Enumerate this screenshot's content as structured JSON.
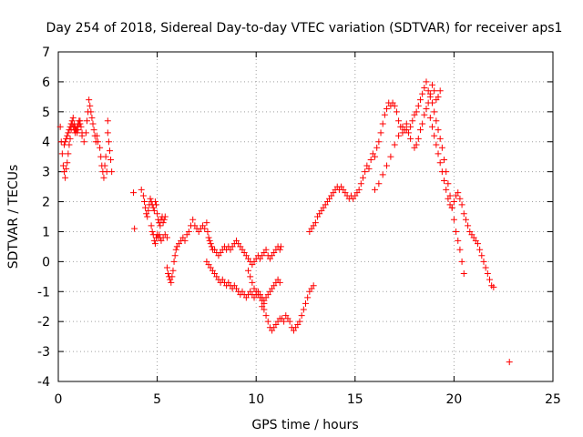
{
  "chart_data": {
    "type": "scatter",
    "title": "Day 254 of 2018, Sidereal Day-to-day VTEC variation (SDTVAR) for receiver aps1",
    "xlabel": "GPS time / hours",
    "ylabel": "SDTVAR / TECUs",
    "xlim": [
      0,
      25
    ],
    "ylim": [
      -4,
      7
    ],
    "x_ticks": [
      0,
      5,
      10,
      15,
      20,
      25
    ],
    "y_ticks": [
      -4,
      -3,
      -2,
      -1,
      0,
      1,
      2,
      3,
      4,
      5,
      6,
      7
    ],
    "grid": true,
    "legend": "none",
    "marker": "plus",
    "color": "#ff0000",
    "series": [
      {
        "x": [
          0.1,
          0.15,
          0.2,
          0.25,
          0.3,
          0.35,
          0.4,
          0.45,
          0.5,
          0.55,
          0.6,
          0.65,
          0.7,
          0.75,
          0.8,
          0.85,
          0.9,
          0.95,
          1.0,
          1.05,
          1.1,
          1.15,
          1.2,
          0.3,
          0.35,
          0.4,
          0.45,
          0.5,
          0.55,
          0.6,
          0.65,
          0.7,
          0.75,
          0.8,
          0.85,
          0.9,
          0.95,
          1.0,
          1.05,
          1.1,
          1.2,
          1.3,
          1.4,
          1.45,
          1.5,
          1.55,
          1.6,
          1.65,
          1.7,
          1.75,
          1.8,
          1.85,
          1.9,
          1.95,
          2.0,
          2.1,
          2.15,
          2.2,
          2.25,
          2.3,
          2.35,
          2.4,
          2.45,
          2.5,
          2.5,
          2.55,
          2.6,
          2.65,
          2.7
        ],
        "y": [
          4.5,
          4.0,
          3.6,
          3.2,
          3.0,
          2.8,
          3.1,
          3.3,
          3.6,
          3.9,
          4.1,
          4.4,
          4.6,
          4.8,
          4.6,
          4.5,
          4.4,
          4.3,
          4.4,
          4.6,
          4.7,
          4.5,
          4.3,
          3.9,
          4.0,
          4.1,
          4.2,
          4.3,
          4.4,
          4.5,
          4.6,
          4.7,
          4.5,
          4.4,
          4.3,
          4.4,
          4.5,
          4.6,
          4.7,
          4.6,
          4.2,
          4.0,
          4.3,
          4.7,
          5.0,
          5.4,
          5.2,
          5.0,
          4.8,
          4.6,
          4.4,
          4.2,
          4.0,
          4.2,
          4.0,
          3.8,
          3.5,
          3.2,
          3.0,
          2.8,
          3.2,
          3.5,
          3.0,
          4.7,
          4.3,
          4.0,
          3.7,
          3.4,
          3.0
        ]
      },
      {
        "x": [
          3.8,
          3.85,
          4.2,
          4.3,
          4.35,
          4.4,
          4.45,
          4.5,
          4.55,
          4.6,
          4.65,
          4.7,
          4.75,
          4.8,
          4.85,
          4.9,
          4.95,
          5.0,
          5.05,
          5.1,
          5.15,
          5.2,
          5.25,
          5.3,
          5.35,
          5.4,
          4.7,
          4.75,
          4.8,
          4.85,
          4.9,
          4.95,
          5.0,
          5.05,
          5.1,
          5.15,
          5.2,
          5.3,
          5.4,
          5.5,
          5.5,
          5.55,
          5.6,
          5.65,
          5.7,
          5.75,
          5.8,
          5.85,
          5.9,
          5.95,
          6.0,
          6.1,
          6.2,
          6.3,
          6.4,
          6.5,
          6.6,
          6.7,
          6.8,
          6.9,
          7.0,
          7.1,
          7.2,
          7.3,
          7.4,
          7.5,
          7.55,
          7.6,
          7.65,
          7.7,
          7.75,
          7.8,
          7.9,
          8.0,
          8.1,
          8.2,
          8.3,
          8.4,
          8.5,
          8.6,
          8.7,
          8.8,
          8.9,
          9.0,
          9.1,
          9.2,
          9.3,
          9.4,
          9.5,
          9.6,
          9.7,
          9.8,
          9.9,
          10.0,
          10.1,
          10.2,
          10.3,
          10.4,
          10.5,
          10.6,
          10.7,
          10.8,
          10.9,
          11.0,
          11.1,
          11.2,
          11.25
        ],
        "y": [
          2.3,
          1.1,
          2.4,
          2.2,
          2.0,
          1.8,
          1.6,
          1.5,
          1.7,
          1.9,
          2.1,
          2.0,
          1.9,
          1.8,
          1.7,
          2.0,
          1.9,
          1.6,
          1.4,
          1.3,
          1.2,
          1.4,
          1.5,
          1.3,
          1.4,
          1.5,
          1.2,
          1.0,
          0.9,
          0.7,
          0.6,
          0.8,
          0.9,
          0.8,
          0.9,
          0.8,
          0.7,
          0.8,
          0.9,
          0.8,
          -0.2,
          -0.4,
          -0.5,
          -0.6,
          -0.7,
          -0.5,
          -0.3,
          0.0,
          0.2,
          0.4,
          0.5,
          0.6,
          0.7,
          0.8,
          0.7,
          0.9,
          1.0,
          1.2,
          1.4,
          1.2,
          1.1,
          1.0,
          1.1,
          1.2,
          1.1,
          1.3,
          1.0,
          0.8,
          0.7,
          0.6,
          0.5,
          0.4,
          0.4,
          0.3,
          0.2,
          0.3,
          0.4,
          0.5,
          0.4,
          0.5,
          0.4,
          0.5,
          0.6,
          0.7,
          0.6,
          0.5,
          0.4,
          0.3,
          0.2,
          0.1,
          0.0,
          -0.1,
          0.0,
          0.1,
          0.2,
          0.1,
          0.2,
          0.3,
          0.4,
          0.2,
          0.1,
          0.2,
          0.3,
          0.4,
          0.5,
          0.4,
          0.5
        ]
      },
      {
        "x": [
          7.5,
          7.6,
          7.7,
          7.8,
          7.9,
          8.0,
          8.1,
          8.2,
          8.3,
          8.4,
          8.5,
          8.6,
          8.7,
          8.8,
          8.9,
          9.0,
          9.1,
          9.2,
          9.3,
          9.4,
          9.5,
          9.6,
          9.7,
          9.8,
          9.9,
          10.0,
          10.1,
          10.2,
          10.3,
          10.4,
          10.5,
          10.6,
          10.7,
          10.8,
          10.9,
          11.0,
          11.1,
          11.2,
          9.6,
          9.7,
          9.8,
          9.9,
          10.0,
          10.1,
          10.2,
          10.3,
          10.4
        ],
        "y": [
          0.0,
          -0.1,
          -0.2,
          -0.3,
          -0.4,
          -0.5,
          -0.6,
          -0.7,
          -0.6,
          -0.7,
          -0.8,
          -0.7,
          -0.8,
          -0.9,
          -0.8,
          -0.9,
          -1.0,
          -1.1,
          -1.0,
          -1.1,
          -1.2,
          -1.1,
          -1.0,
          -1.1,
          -1.2,
          -1.1,
          -1.0,
          -1.1,
          -1.2,
          -1.3,
          -1.2,
          -1.1,
          -1.0,
          -0.9,
          -0.8,
          -0.7,
          -0.6,
          -0.7,
          -0.3,
          -0.5,
          -0.7,
          -0.9,
          -1.0,
          -1.1,
          -1.2,
          -1.3,
          -1.4
        ]
      },
      {
        "x": [
          10.3,
          10.4,
          10.5,
          10.6,
          10.7,
          10.8,
          10.9,
          11.0,
          11.1,
          11.2,
          11.3,
          11.4,
          11.5,
          11.6,
          11.7,
          11.8,
          11.9,
          12.0,
          12.1,
          12.2,
          12.3,
          12.4,
          12.5,
          12.6,
          12.7,
          12.8,
          12.9
        ],
        "y": [
          -1.5,
          -1.6,
          -1.8,
          -2.0,
          -2.2,
          -2.3,
          -2.2,
          -2.1,
          -2.0,
          -1.9,
          -1.9,
          -2.0,
          -1.8,
          -1.9,
          -2.0,
          -2.2,
          -2.3,
          -2.2,
          -2.1,
          -2.0,
          -1.8,
          -1.6,
          -1.4,
          -1.2,
          -1.0,
          -0.9,
          -0.8
        ]
      },
      {
        "x": [
          12.7,
          12.8,
          12.9,
          13.0,
          13.1,
          13.2,
          13.3,
          13.4,
          13.5,
          13.6,
          13.7,
          13.8,
          13.9,
          14.0,
          14.1,
          14.2,
          14.3,
          14.4,
          14.5,
          14.6,
          14.7,
          14.8,
          14.9,
          15.0,
          15.1,
          15.2,
          15.3,
          15.4,
          15.5,
          15.6,
          15.7,
          15.8,
          15.9,
          16.0,
          16.1,
          16.2,
          16.3,
          16.4,
          16.5,
          16.6,
          16.7,
          16.8,
          16.9,
          17.0,
          17.1,
          17.2,
          17.3,
          17.4,
          17.5,
          17.6,
          17.7,
          17.8,
          17.9,
          18.0,
          18.1,
          18.2,
          18.3,
          18.4,
          18.5,
          18.6,
          18.7,
          18.8,
          18.9,
          19.0,
          19.1,
          19.2,
          19.3,
          19.4,
          19.5,
          19.6,
          19.7,
          19.8,
          19.9,
          20.0,
          20.1,
          20.2,
          20.3,
          20.4,
          20.5
        ],
        "y": [
          1.0,
          1.1,
          1.2,
          1.3,
          1.5,
          1.6,
          1.7,
          1.8,
          1.9,
          2.0,
          2.1,
          2.2,
          2.3,
          2.4,
          2.5,
          2.4,
          2.5,
          2.4,
          2.3,
          2.2,
          2.1,
          2.2,
          2.1,
          2.2,
          2.3,
          2.4,
          2.6,
          2.8,
          3.0,
          3.2,
          3.1,
          3.4,
          3.6,
          3.5,
          3.8,
          4.0,
          4.3,
          4.6,
          4.9,
          5.1,
          5.3,
          5.2,
          5.3,
          5.2,
          5.0,
          4.7,
          4.5,
          4.3,
          4.4,
          4.6,
          4.3,
          4.5,
          4.7,
          4.9,
          5.0,
          5.2,
          5.4,
          5.6,
          5.8,
          6.0,
          5.7,
          5.5,
          5.3,
          5.0,
          4.7,
          4.4,
          4.1,
          3.8,
          3.4,
          3.0,
          2.6,
          2.2,
          1.8,
          1.4,
          1.0,
          0.7,
          0.4,
          0.0,
          -0.4
        ]
      },
      {
        "x": [
          16.0,
          16.2,
          16.4,
          16.6,
          16.8,
          17.0,
          17.2,
          17.4,
          17.6,
          17.8,
          18.0,
          18.1,
          18.2,
          18.3,
          18.4,
          18.5,
          18.6,
          18.7,
          18.8,
          18.9,
          19.0,
          19.1,
          19.2,
          19.3
        ],
        "y": [
          2.4,
          2.6,
          2.9,
          3.2,
          3.5,
          3.9,
          4.2,
          4.5,
          4.4,
          4.1,
          3.8,
          3.9,
          4.1,
          4.4,
          4.6,
          4.9,
          5.1,
          5.3,
          5.6,
          5.9,
          5.7,
          5.4,
          5.5,
          5.7
        ]
      },
      {
        "x": [
          18.8,
          18.9,
          19.0,
          19.1,
          19.2,
          19.3,
          19.4,
          19.5,
          19.6,
          19.7,
          19.8,
          19.9,
          20.0,
          20.1,
          20.2,
          20.3,
          20.4,
          20.5,
          20.6,
          20.7,
          20.8,
          20.9,
          21.0,
          21.1,
          21.2,
          21.3,
          21.4,
          21.5,
          21.6,
          21.7,
          21.8,
          21.9,
          22.0
        ],
        "y": [
          4.8,
          4.5,
          4.2,
          3.9,
          3.6,
          3.3,
          3.0,
          2.7,
          2.4,
          2.1,
          1.9,
          1.8,
          2.0,
          2.2,
          2.3,
          2.1,
          1.9,
          1.6,
          1.4,
          1.2,
          1.0,
          0.9,
          0.8,
          0.7,
          0.6,
          0.4,
          0.2,
          0.0,
          -0.2,
          -0.4,
          -0.6,
          -0.8,
          -0.85
        ]
      },
      {
        "x": [
          22.8
        ],
        "y": [
          -3.35
        ]
      }
    ]
  }
}
